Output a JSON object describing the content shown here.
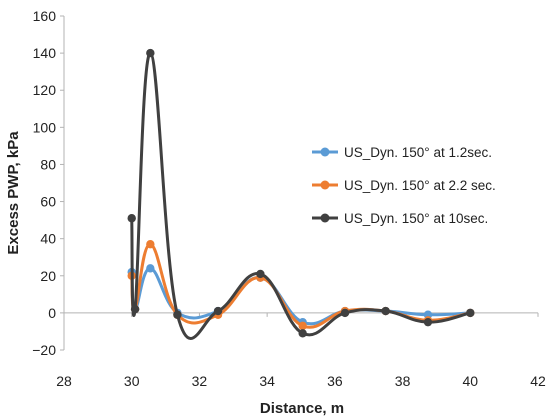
{
  "chart_data": {
    "type": "line",
    "title": "",
    "xlabel": "Distance, m",
    "ylabel": "Excess PWP, kPa",
    "xlim": [
      28,
      42
    ],
    "ylim": [
      -20,
      160
    ],
    "xticks": [
      28,
      30,
      32,
      34,
      36,
      38,
      40,
      42
    ],
    "yticks": [
      -20,
      0,
      20,
      40,
      60,
      80,
      100,
      120,
      140,
      160
    ],
    "grid": false,
    "legend_position": "right",
    "smooth": true,
    "series": [
      {
        "name": "US_Dyn. 150° at 1.2sec.",
        "color": "#5b9bd5",
        "x": [
          30.0,
          30.1,
          30.55,
          31.35,
          32.55,
          33.8,
          35.05,
          36.3,
          37.5,
          38.75,
          40.0
        ],
        "y": [
          22,
          2,
          24,
          0,
          1,
          19,
          -5,
          1,
          1,
          -1,
          0
        ]
      },
      {
        "name": "US_Dyn. 150° at 2.2 sec.",
        "color": "#ed7d31",
        "x": [
          30.0,
          30.1,
          30.55,
          31.35,
          32.55,
          33.8,
          35.05,
          36.3,
          37.5,
          38.75,
          40.0
        ],
        "y": [
          20,
          2,
          37,
          -1,
          -1,
          19,
          -7,
          1,
          1,
          -4,
          0
        ]
      },
      {
        "name": "US_Dyn. 150° at 10sec.",
        "color": "#404040",
        "x": [
          30.0,
          30.1,
          30.55,
          31.35,
          32.55,
          33.8,
          35.05,
          36.3,
          37.5,
          38.75,
          40.0
        ],
        "y": [
          51,
          2,
          140,
          -1,
          1,
          21,
          -11,
          0,
          1,
          -5,
          0
        ]
      }
    ]
  }
}
